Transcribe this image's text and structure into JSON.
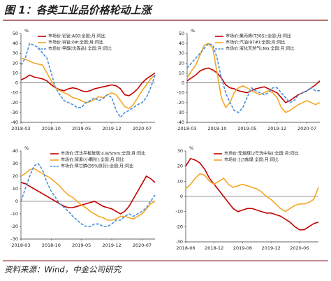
{
  "title": "图 1：各类工业品价格轮动上涨",
  "source": "资料来源：Wind，中金公司研究",
  "chart_data": [
    {
      "type": "line",
      "y_label": "%",
      "legend": "upper left",
      "categories": [
        "2018-03",
        null,
        null,
        null,
        null,
        null,
        null,
        "2018-10",
        null,
        null,
        null,
        null,
        null,
        null,
        "2019-05",
        null,
        null,
        null,
        null,
        null,
        null,
        "2019-12",
        null,
        null,
        null,
        null,
        null,
        null,
        "2020-07",
        null,
        null,
        null
      ],
      "ylim": [
        -40,
        50
      ],
      "yticks": [
        -40,
        -30,
        -20,
        -10,
        0,
        10,
        20,
        30,
        40,
        50
      ],
      "series": [
        {
          "name": "市场价:铝锭:A00:全国:月:同比",
          "color": "#c00000",
          "dashed": false,
          "values": [
            3,
            5,
            8,
            6,
            5,
            4,
            2,
            -2,
            -5,
            -7,
            -8,
            -6,
            -5,
            -6,
            -8,
            -9,
            -8,
            -6,
            -5,
            -4,
            -3,
            -2,
            -3,
            -6,
            -12,
            -13,
            -10,
            -6,
            0,
            4,
            7,
            10
          ]
        },
        {
          "name": "市场价:锌锭:0#:全国:月:同比",
          "color": "#f5a623",
          "dashed": false,
          "values": [
            25,
            24,
            22,
            20,
            19,
            18,
            10,
            2,
            -5,
            -8,
            -10,
            -12,
            -15,
            -16,
            -18,
            -20,
            -19,
            -17,
            -14,
            -15,
            -12,
            -10,
            -12,
            -18,
            -24,
            -26,
            -22,
            -15,
            -8,
            -2,
            4,
            8
          ]
        },
        {
          "name": "市场价:甲醇(优等品):全国:月:同比",
          "color": "#4a90d9",
          "dashed": true,
          "values": [
            18,
            25,
            40,
            38,
            36,
            30,
            25,
            10,
            -5,
            -12,
            -18,
            -20,
            -22,
            -25,
            -25,
            -20,
            -18,
            -15,
            -18,
            -16,
            -12,
            -15,
            -28,
            -35,
            -30,
            -28,
            -25,
            -22,
            -20,
            -15,
            -5,
            8
          ]
        }
      ]
    },
    {
      "type": "line",
      "y_label": "%",
      "legend": "upper right",
      "categories": [
        "2018-03",
        null,
        null,
        null,
        null,
        null,
        null,
        "2018-10",
        null,
        null,
        null,
        null,
        null,
        null,
        "2019-05",
        null,
        null,
        null,
        null,
        null,
        null,
        "2019-12",
        null,
        null,
        null,
        null,
        null,
        null,
        "2020-07",
        null,
        null,
        null
      ],
      "ylim": [
        -40,
        50
      ],
      "yticks": [
        -40,
        -30,
        -20,
        -10,
        0,
        10,
        20,
        30,
        40,
        50
      ],
      "series": [
        {
          "name": "市场价:聚丙烯(T30S):全国:月:同比",
          "color": "#c00000",
          "dashed": false,
          "values": [
            2,
            5,
            8,
            12,
            14,
            15,
            13,
            10,
            5,
            -2,
            -5,
            -6,
            -8,
            -9,
            -10,
            -8,
            -6,
            -5,
            -4,
            -6,
            -8,
            -10,
            -15,
            -20,
            -18,
            -15,
            -12,
            -10,
            -8,
            -5,
            -2,
            2
          ]
        },
        {
          "name": "市场价:汽油(97#):全国:月:同比",
          "color": "#f5a623",
          "dashed": false,
          "values": [
            5,
            12,
            18,
            28,
            38,
            40,
            35,
            10,
            -15,
            -25,
            -20,
            -10,
            -5,
            -3,
            -5,
            -8,
            -10,
            -12,
            -10,
            -8,
            -10,
            -15,
            -25,
            -30,
            -28,
            -25,
            -22,
            -20,
            -18,
            -20,
            -22,
            -20
          ]
        },
        {
          "name": "市场价:液化天然气LNG:全国:月:同比",
          "color": "#4a90d9",
          "dashed": true,
          "values": [
            15,
            20,
            25,
            30,
            35,
            40,
            38,
            25,
            5,
            -10,
            -20,
            -28,
            -30,
            -25,
            -15,
            -5,
            -8,
            -10,
            -12,
            -10,
            -5,
            -5,
            -10,
            -15,
            -20,
            -18,
            -12,
            -10,
            -8,
            -5,
            -8,
            -8
          ]
        }
      ]
    },
    {
      "type": "line",
      "y_label": "%",
      "legend": "upper right",
      "categories": [
        "2018-03",
        null,
        null,
        null,
        null,
        null,
        null,
        "2018-10",
        null,
        null,
        null,
        null,
        null,
        null,
        "2019-05",
        null,
        null,
        null,
        null,
        null,
        null,
        "2019-12",
        null,
        null,
        null,
        null,
        null,
        null,
        "2020-07",
        null,
        null,
        null
      ],
      "ylim": [
        -30,
        40
      ],
      "yticks": [
        -30,
        -20,
        -10,
        0,
        10,
        20,
        30,
        40
      ],
      "series": [
        {
          "name": "市场价:浮法平板玻璃:4.8/5mm:全国:月:同比",
          "color": "#c00000",
          "dashed": false,
          "values": [
            15,
            14,
            12,
            10,
            8,
            6,
            4,
            2,
            0,
            -2,
            -4,
            -5,
            -5,
            -4,
            -3,
            -2,
            -1,
            0,
            -2,
            -4,
            -5,
            -6,
            -8,
            -10,
            -8,
            -4,
            2,
            8,
            14,
            20,
            18,
            15
          ]
        },
        {
          "name": "市场价:尿素(小颗粒):全国:月:同比",
          "color": "#f5a623",
          "dashed": false,
          "values": [
            20,
            22,
            25,
            26,
            24,
            22,
            20,
            18,
            15,
            12,
            8,
            5,
            3,
            0,
            -3,
            -5,
            -8,
            -10,
            -12,
            -13,
            -15,
            -15,
            -14,
            -12,
            -12,
            -13,
            -14,
            -12,
            -10,
            -6,
            -2,
            0
          ]
        },
        {
          "name": "市场价:草甘膦(95%原药):全国:月:同比",
          "color": "#4a90d9",
          "dashed": true,
          "values": [
            0,
            10,
            20,
            28,
            30,
            25,
            15,
            8,
            3,
            -2,
            -5,
            -8,
            -12,
            -15,
            -18,
            -20,
            -20,
            -18,
            -18,
            -20,
            -20,
            -18,
            -15,
            -15,
            -12,
            -10,
            -12,
            -10,
            -8,
            -5,
            0,
            5
          ]
        }
      ]
    },
    {
      "type": "line",
      "y_label": "%",
      "legend": "upper right",
      "categories": [
        "2018-06",
        null,
        null,
        null,
        null,
        null,
        "2018-12",
        null,
        null,
        null,
        null,
        null,
        "2019-06",
        null,
        null,
        null,
        null,
        null,
        "2019-12",
        null,
        null,
        null,
        null,
        null,
        "2020-06",
        null,
        null,
        null,
        null
      ],
      "ylim": [
        -30,
        30
      ],
      "yticks": [
        -30,
        -20,
        -10,
        0,
        10,
        20,
        30
      ],
      "series": [
        {
          "name": "市场价:无烟煤(2号洗中块):全国:月:同比",
          "color": "#c00000",
          "dashed": false,
          "values": [
            20,
            25,
            24,
            22,
            18,
            12,
            8,
            4,
            0,
            -4,
            -8,
            -10,
            -9,
            -8,
            -8,
            -9,
            -10,
            -11,
            -11,
            -12,
            -13,
            -15,
            -17,
            -20,
            -22,
            -22,
            -20,
            -18,
            -17
          ]
        },
        {
          "name": "市场价:1/3焦煤:全国:月:同比",
          "color": "#f5a623",
          "dashed": false,
          "values": [
            5,
            8,
            12,
            15,
            14,
            10,
            8,
            10,
            12,
            8,
            6,
            7,
            8,
            7,
            6,
            5,
            3,
            0,
            -2,
            -5,
            -8,
            -10,
            -8,
            -6,
            -5,
            -5,
            -4,
            -2,
            6
          ]
        }
      ]
    }
  ]
}
